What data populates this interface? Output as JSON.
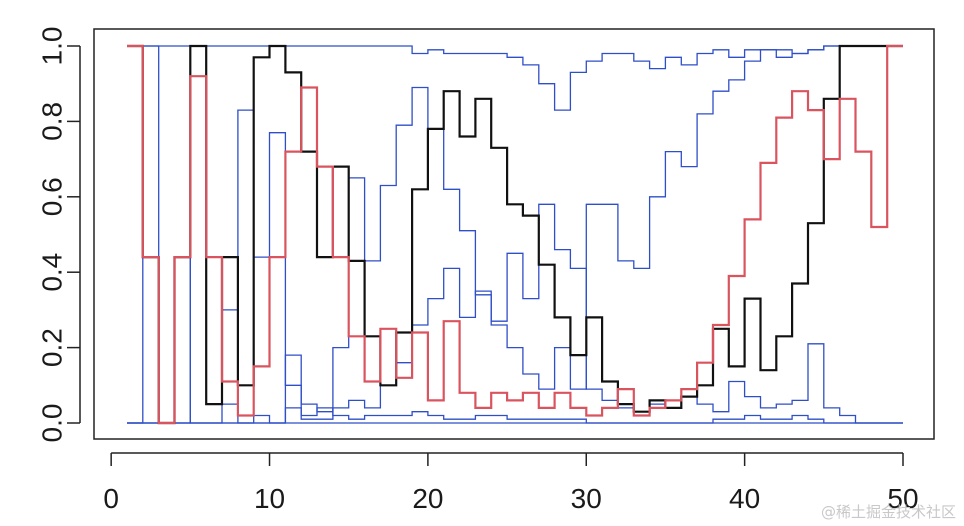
{
  "watermark": "@稀土掘金技术社区",
  "chart_data": {
    "type": "line",
    "step": true,
    "xlim": [
      1,
      50
    ],
    "ylim": [
      0,
      1
    ],
    "x_ticks": [
      0,
      10,
      20,
      30,
      40,
      50
    ],
    "y_ticks": [
      0.0,
      0.2,
      0.4,
      0.6,
      0.8,
      1.0
    ],
    "x_tick_labels": [
      "0",
      "10",
      "20",
      "30",
      "40",
      "50"
    ],
    "y_tick_labels": [
      "0.0",
      "0.2",
      "0.4",
      "0.6",
      "0.8",
      "1.0"
    ],
    "grid": false,
    "colors": {
      "black": "#111111",
      "red": "#d9545e",
      "blue": "#2f4fc8"
    },
    "series": [
      {
        "color": "blue",
        "values": [
          1,
          1,
          1,
          1,
          1,
          1,
          1,
          1,
          1,
          1,
          1,
          1,
          1,
          1,
          1,
          1,
          1,
          1,
          0.98,
          0.99,
          0.98,
          0.98,
          0.98,
          0.98,
          0.97,
          0.95,
          0.9,
          0.83,
          0.93,
          0.96,
          0.98,
          0.98,
          0.96,
          0.94,
          0.97,
          0.95,
          0.98,
          0.99,
          0.97,
          0.99,
          0.99,
          0.99,
          0.98,
          0.99,
          1,
          1,
          1,
          1,
          1
        ]
      },
      {
        "color": "blue",
        "values": [
          0,
          0,
          0,
          0,
          1,
          0.05,
          0.3,
          0.83,
          0.44,
          0.77,
          0.1,
          0.05,
          0.03,
          0.2,
          0.65,
          0.43,
          0.63,
          0.79,
          0.89,
          0.78,
          0.62,
          0.51,
          0.34,
          0.26,
          0.2,
          0.13,
          0.09,
          0.2,
          0.09,
          0.58,
          0.58,
          0.43,
          0.41,
          0.6,
          0.72,
          0.68,
          0.82,
          0.88,
          0.91,
          0.96,
          0.99,
          0.97,
          0.98,
          0.99,
          1,
          1,
          1,
          1,
          1
        ]
      },
      {
        "color": "blue",
        "values": [
          0,
          1,
          0,
          0.44,
          0,
          0,
          0.05,
          0,
          0.02,
          0,
          0.04,
          0.01,
          0.01,
          0.04,
          0.06,
          0.04,
          0.1,
          0.16,
          0.26,
          0.33,
          0.41,
          0.28,
          0.35,
          0.27,
          0.45,
          0.33,
          0.58,
          0.46,
          0.41,
          0.09,
          0.06,
          0.04,
          0.03,
          0.05,
          0.06,
          0.07,
          0.05,
          0.03,
          0.11,
          0.07,
          0.04,
          0.05,
          0.06,
          0.21,
          0.04,
          0.02,
          0,
          0,
          0
        ]
      },
      {
        "color": "blue",
        "values": [
          0,
          0,
          0,
          0,
          0,
          0,
          0,
          0,
          0,
          0,
          0.18,
          0.02,
          0.04,
          0.02,
          0.01,
          0.02,
          0.02,
          0.02,
          0.03,
          0.02,
          0.01,
          0.01,
          0.02,
          0.02,
          0.01,
          0.01,
          0.01,
          0.01,
          0.01,
          0,
          0,
          0,
          0,
          0,
          0,
          0,
          0,
          0.01,
          0.01,
          0.02,
          0.01,
          0.01,
          0.02,
          0.01,
          0,
          0,
          0,
          0,
          0
        ]
      },
      {
        "color": "blue",
        "values": [
          0,
          0,
          0,
          0,
          0,
          0,
          0,
          0,
          0,
          0,
          0,
          0,
          0,
          0,
          0,
          0,
          0,
          0,
          0,
          0,
          0,
          0,
          0,
          0,
          0,
          0,
          0,
          0,
          0,
          0,
          0,
          0,
          0,
          0,
          0,
          0,
          0,
          0,
          0,
          0,
          0,
          0,
          0,
          0,
          0,
          0,
          0,
          0,
          0
        ]
      },
      {
        "color": "black",
        "values": [
          1,
          0.44,
          0,
          0.44,
          1,
          0.05,
          0.44,
          0.1,
          0.97,
          1,
          0.93,
          0.72,
          0.44,
          0.68,
          0.43,
          0.23,
          0.1,
          0.24,
          0.62,
          0.78,
          0.88,
          0.76,
          0.86,
          0.73,
          0.58,
          0.55,
          0.42,
          0.28,
          0.18,
          0.28,
          0.11,
          0.05,
          0.03,
          0.06,
          0.04,
          0.07,
          0.1,
          0.25,
          0.15,
          0.33,
          0.14,
          0.23,
          0.37,
          0.53,
          0.86,
          1,
          1,
          1,
          1
        ]
      },
      {
        "color": "red",
        "values": [
          1,
          0.44,
          0,
          0.44,
          0.92,
          0.44,
          0.11,
          0.02,
          0.15,
          0.44,
          0.72,
          0.89,
          0.68,
          0.44,
          0.23,
          0.11,
          0.25,
          0.12,
          0.24,
          0.06,
          0.27,
          0.08,
          0.04,
          0.08,
          0.06,
          0.08,
          0.04,
          0.08,
          0.04,
          0.02,
          0.04,
          0.09,
          0.02,
          0.04,
          0.06,
          0.09,
          0.16,
          0.26,
          0.39,
          0.54,
          0.69,
          0.81,
          0.88,
          0.83,
          0.7,
          0.86,
          0.72,
          0.52,
          1
        ]
      }
    ]
  }
}
